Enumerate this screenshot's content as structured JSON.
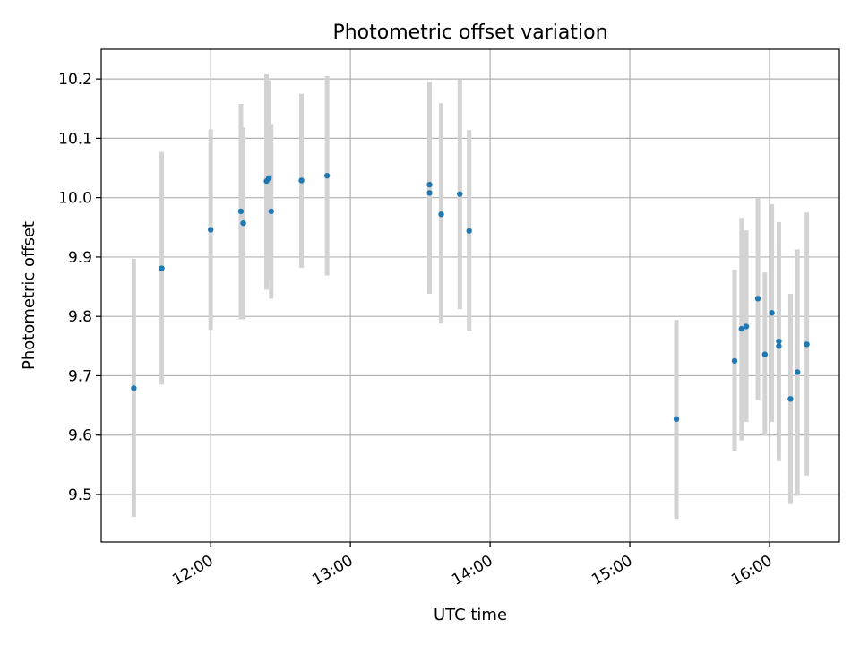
{
  "chart_data": {
    "type": "scatter",
    "title": "Photometric offset variation",
    "xlabel": "UTC time",
    "ylabel": "Photometric offset",
    "xlim": [
      "11:13",
      "16:30"
    ],
    "ylim": [
      9.42,
      10.25
    ],
    "x_ticks": [
      "12:00",
      "13:00",
      "14:00",
      "15:00",
      "16:00"
    ],
    "y_ticks": [
      "9.5",
      "9.6",
      "9.7",
      "9.8",
      "9.9",
      "10.0",
      "10.1",
      "10.2"
    ],
    "grid": true,
    "colors": {
      "point": "#1f77b4",
      "errorbar": "#d3d3d3",
      "grid": "#b0b0b0"
    },
    "series": [
      {
        "points": [
          {
            "t": "11:27",
            "y": 9.679,
            "low": 9.462,
            "high": 9.897
          },
          {
            "t": "11:39",
            "y": 9.881,
            "low": 9.685,
            "high": 10.077
          },
          {
            "t": "12:00",
            "y": 9.946,
            "low": 9.777,
            "high": 10.115
          },
          {
            "t": "12:13",
            "y": 9.977,
            "low": 9.795,
            "high": 10.158
          },
          {
            "t": "12:14",
            "y": 9.957,
            "low": 9.795,
            "high": 10.118
          },
          {
            "t": "12:24",
            "y": 10.028,
            "low": 9.845,
            "high": 10.208
          },
          {
            "t": "12:25",
            "y": 10.033,
            "low": 9.863,
            "high": 10.198
          },
          {
            "t": "12:26",
            "y": 9.977,
            "low": 9.83,
            "high": 10.124
          },
          {
            "t": "12:39",
            "y": 10.029,
            "low": 9.882,
            "high": 10.175
          },
          {
            "t": "12:50",
            "y": 10.037,
            "low": 9.869,
            "high": 10.205
          },
          {
            "t": "13:34",
            "y": 10.022,
            "low": 9.85,
            "high": 10.195
          },
          {
            "t": "13:34",
            "y": 10.008,
            "low": 9.838,
            "high": 10.178
          },
          {
            "t": "13:39",
            "y": 9.972,
            "low": 9.788,
            "high": 10.159
          },
          {
            "t": "13:47",
            "y": 10.006,
            "low": 9.812,
            "high": 10.199
          },
          {
            "t": "13:51",
            "y": 9.944,
            "low": 9.775,
            "high": 10.114
          },
          {
            "t": "15:20",
            "y": 9.627,
            "low": 9.459,
            "high": 9.794
          },
          {
            "t": "15:45",
            "y": 9.725,
            "low": 9.574,
            "high": 9.879
          },
          {
            "t": "15:48",
            "y": 9.779,
            "low": 9.591,
            "high": 9.966
          },
          {
            "t": "15:50",
            "y": 9.783,
            "low": 9.622,
            "high": 9.945
          },
          {
            "t": "15:55",
            "y": 9.83,
            "low": 9.659,
            "high": 9.999
          },
          {
            "t": "15:58",
            "y": 9.736,
            "low": 9.599,
            "high": 9.874
          },
          {
            "t": "16:01",
            "y": 9.806,
            "low": 9.622,
            "high": 9.989
          },
          {
            "t": "16:04",
            "y": 9.758,
            "low": 9.556,
            "high": 9.959
          },
          {
            "t": "16:04",
            "y": 9.75,
            "low": 9.574,
            "high": 9.924
          },
          {
            "t": "16:09",
            "y": 9.661,
            "low": 9.484,
            "high": 9.838
          },
          {
            "t": "16:12",
            "y": 9.706,
            "low": 9.498,
            "high": 9.913
          },
          {
            "t": "16:16",
            "y": 9.753,
            "low": 9.532,
            "high": 9.975
          }
        ]
      }
    ]
  }
}
